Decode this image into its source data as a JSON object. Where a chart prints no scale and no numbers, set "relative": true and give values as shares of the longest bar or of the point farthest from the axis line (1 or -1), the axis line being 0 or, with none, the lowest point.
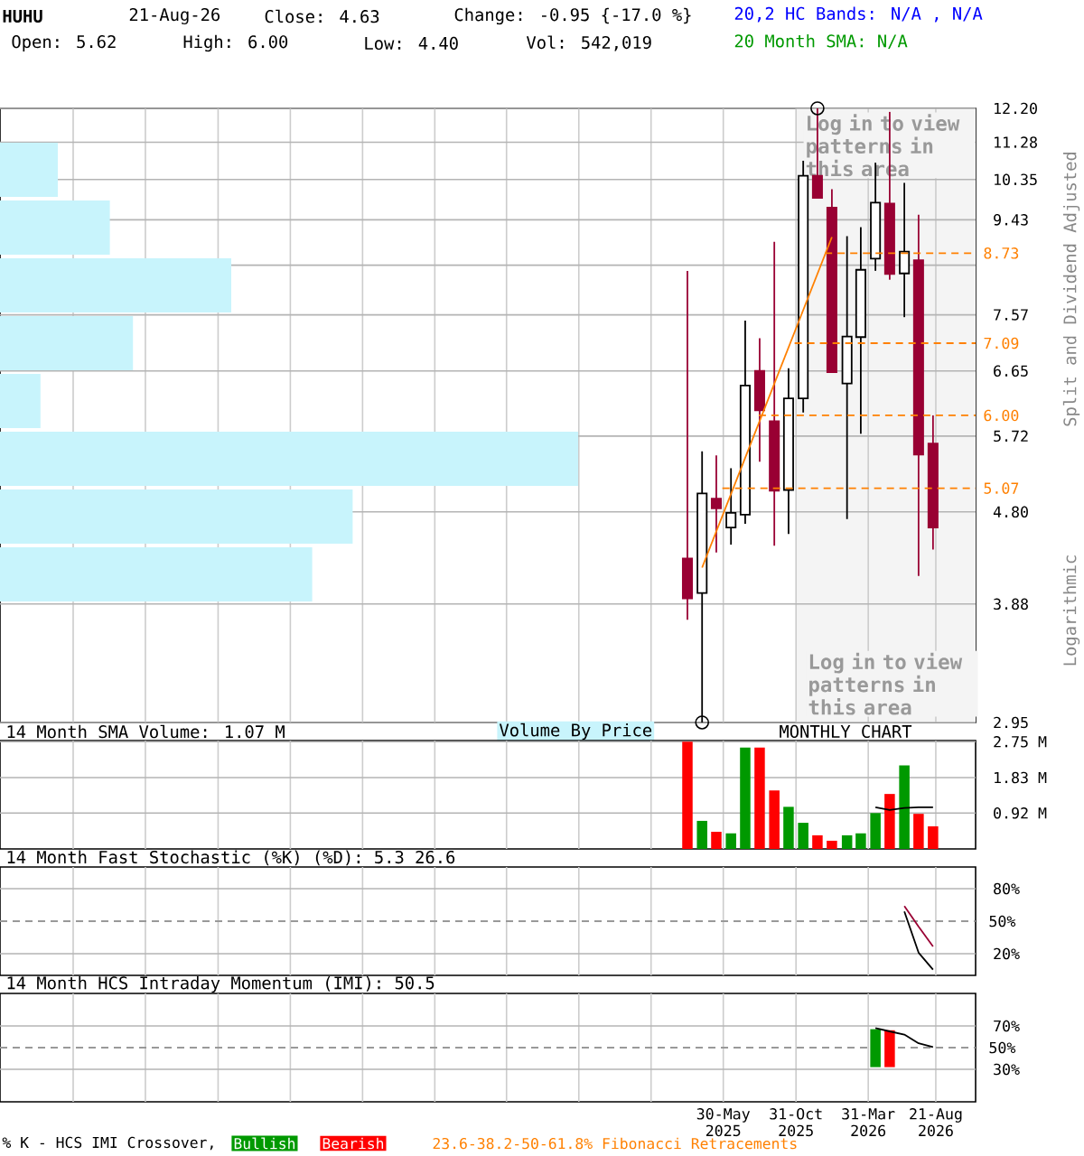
{
  "chart_data": [
    {
      "type": "candlestick",
      "title": "HUHU",
      "x": [
        "2025-03-15",
        "2025-04-15",
        "2025-05-15",
        "2025-06-15",
        "2025-07-15",
        "2025-08-15",
        "2025-09-15",
        "2025-10-15",
        "2025-11-15",
        "2025-12-15",
        "2026-01-15",
        "2026-02-15",
        "2026-03-15",
        "2026-04-15",
        "2026-05-15",
        "2026-06-15",
        "2026-07-15",
        "2026-08-15"
      ],
      "ohlc": [
        [
          4.31,
          8.38,
          3.74,
          3.93
        ],
        [
          3.98,
          5.52,
          2.95,
          5.01
        ],
        [
          4.95,
          5.47,
          4.37,
          4.84
        ],
        [
          4.63,
          5.31,
          4.45,
          4.79
        ],
        [
          4.77,
          7.47,
          4.67,
          6.43
        ],
        [
          6.65,
          7.17,
          5.39,
          6.07
        ],
        [
          5.92,
          8.96,
          4.44,
          5.04
        ],
        [
          5.05,
          6.69,
          4.56,
          6.24
        ],
        [
          6.24,
          10.81,
          6.04,
          10.44
        ],
        [
          10.44,
          12.2,
          9.92,
          9.92
        ],
        [
          9.7,
          10.12,
          6.63,
          6.63
        ],
        [
          6.46,
          9.08,
          4.72,
          7.2
        ],
        [
          7.19,
          9.27,
          5.75,
          8.4
        ],
        [
          8.62,
          10.76,
          8.38,
          9.81
        ],
        [
          9.79,
          12.1,
          8.21,
          8.32
        ],
        [
          8.33,
          10.27,
          7.53,
          8.76
        ],
        [
          8.59,
          9.54,
          4.14,
          5.48
        ],
        [
          5.62,
          6.0,
          4.4,
          4.63
        ]
      ],
      "colors": [
        "#990033",
        "#ffffff",
        "#990033",
        "#ffffff",
        "#ffffff",
        "#990033",
        "#990033",
        "#ffffff",
        "#ffffff",
        "#990033",
        "#990033",
        "#ffffff",
        "#ffffff",
        "#ffffff",
        "#990033",
        "#ffffff",
        "#990033",
        "#990033"
      ],
      "series": [
        {
          "type": "line",
          "x": [
            "2025-04-15",
            "2026-01-15"
          ],
          "values": [
            4.22,
            9.06
          ],
          "color": "#ff8000"
        },
        {
          "type": "line",
          "x": [
            "2025-12-31",
            "2026-11-13"
          ],
          "values": [
            8.73,
            8.73
          ],
          "color": "#ff8000",
          "line_style": "dashed"
        },
        {
          "type": "line",
          "x": [
            "2025-10-28",
            "2026-11-13"
          ],
          "values": [
            7.09,
            7.09
          ],
          "color": "#ff8000",
          "line_style": "dashed"
        },
        {
          "type": "line",
          "x": [
            "2025-08-13",
            "2026-11-13"
          ],
          "values": [
            6.0,
            6.0
          ],
          "color": "#ff8000",
          "line_style": "dashed"
        },
        {
          "type": "line",
          "x": [
            "2025-05-28",
            "2026-11-13"
          ],
          "values": [
            5.07,
            5.07
          ],
          "color": "#ff8000",
          "line_style": "dashed"
        },
        {
          "type": "scatter",
          "x": [
            "2025-12-15",
            "2025-04-15"
          ],
          "values": [
            12.2,
            2.95
          ],
          "color": "#000000",
          "marker": "circle"
        }
      ],
      "xlim": [
        "2021-03-28",
        "2026-11-13"
      ],
      "xticks": [
        {
          "value": "2021-08-30",
          "label": null
        },
        {
          "value": "2022-01-30",
          "label": null
        },
        {
          "value": "2022-06-30",
          "label": null
        },
        {
          "value": "2022-11-30",
          "label": null
        },
        {
          "value": "2023-04-30",
          "label": null
        },
        {
          "value": "2023-09-30",
          "label": null
        },
        {
          "value": "2024-02-28",
          "label": null
        },
        {
          "value": "2024-07-30",
          "label": null
        },
        {
          "value": "2024-12-30",
          "label": null
        },
        {
          "value": "2025-05-30",
          "label": null
        },
        {
          "value": "2025-10-31",
          "label": null
        },
        {
          "value": "2026-03-31",
          "label": null
        },
        {
          "value": "2026-08-21",
          "label": null
        }
      ],
      "ylim": [
        2.95,
        12.2
      ],
      "yticks": [
        2.95,
        3.88,
        {
          "value": 4.8,
          "label": "4.80"
        },
        5.72,
        6.65,
        7.57,
        {
          "value": 8.49,
          "label": null
        },
        9.43,
        10.35,
        11.28,
        {
          "value": 12.2,
          "label": "12.20"
        }
      ],
      "log": "y",
      "grid": true,
      "tick_labels": "y",
      "bands": [
        {
          "axis": "x",
          "from": "2025-10-31",
          "to": "2026-11-13",
          "label": "Log in to view patterns in this area",
          "color": "#f4f4f4"
        }
      ],
      "annotations": [
        "21-Aug-26",
        "Close: 4.63",
        "Change: -0.95 {-17.0 %}",
        "20,2 HC Bands: N/A , N/A",
        "Open: 5.62",
        "High: 6.00",
        "Low: 4.40",
        "Vol: 542,019",
        "20 Month SMA: N/A",
        "Split and Dividend Adjusted",
        "Logarithmic",
        "Log in to view patterns in this area",
        {
          "text": "8.73",
          "x": "2026-11-13",
          "y": 8.73
        },
        {
          "text": "7.09",
          "x": "2026-11-13",
          "y": 7.09
        },
        {
          "text": "6.00",
          "x": "2026-11-13",
          "y": 6.0
        },
        {
          "text": "5.07",
          "x": "2026-11-13",
          "y": 5.07
        }
      ]
    },
    {
      "type": "bar",
      "orientation": "horizontal",
      "relative": true,
      "tick_labels": false,
      "categories": [
        null,
        null,
        null,
        null,
        null,
        null,
        null,
        null
      ],
      "values": [
        0.1,
        0.19,
        0.4,
        0.23,
        0.07,
        1,
        0.61,
        0.54
      ],
      "color": "#c8f4fc",
      "annotations": [
        "Volume By Price"
      ]
    },
    {
      "type": "bar",
      "title": "14 Month SMA Volume: 1.07 M",
      "x": [
        "2025-03-15",
        "2025-04-15",
        "2025-05-15",
        "2025-06-15",
        "2025-07-15",
        "2025-08-15",
        "2025-09-15",
        "2025-10-15",
        "2025-11-15",
        "2025-12-15",
        "2026-01-15",
        "2026-02-15",
        "2026-03-15",
        "2026-04-15",
        "2026-05-15",
        "2026-06-15",
        "2026-07-15",
        "2026-08-15"
      ],
      "values": [
        2.75,
        0.72,
        0.44,
        0.4,
        2.6,
        2.6,
        1.5,
        1.08,
        0.67,
        0.35,
        0.21,
        0.35,
        0.4,
        0.92,
        1.41,
        2.14,
        0.9,
        0.58
      ],
      "colors": [
        "#ff0000",
        "#009900",
        "#ff0000",
        "#009900",
        "#009900",
        "#ff0000",
        "#ff0000",
        "#009900",
        "#009900",
        "#ff0000",
        "#ff0000",
        "#009900",
        "#009900",
        "#009900",
        "#ff0000",
        "#009900",
        "#ff0000",
        "#ff0000"
      ],
      "series": [
        {
          "type": "line",
          "x": [
            "2026-04-15",
            "2026-05-15",
            "2026-06-15",
            "2026-07-15",
            "2026-08-15"
          ],
          "values": [
            1.07,
            1.0,
            1.05,
            1.07,
            1.07
          ],
          "color": "#000000"
        }
      ],
      "xlim": [
        "2021-03-28",
        "2026-11-13"
      ],
      "xticks": [
        {
          "value": "2021-08-30",
          "label": null
        },
        {
          "value": "2022-01-30",
          "label": null
        },
        {
          "value": "2022-06-30",
          "label": null
        },
        {
          "value": "2022-11-30",
          "label": null
        },
        {
          "value": "2023-04-30",
          "label": null
        },
        {
          "value": "2023-09-30",
          "label": null
        },
        {
          "value": "2024-02-28",
          "label": null
        },
        {
          "value": "2024-07-30",
          "label": null
        },
        {
          "value": "2024-12-30",
          "label": null
        },
        {
          "value": "2025-05-30",
          "label": null
        },
        {
          "value": "2025-10-31",
          "label": null
        },
        {
          "value": "2026-03-31",
          "label": null
        },
        {
          "value": "2026-08-21",
          "label": null
        }
      ],
      "ylim": [
        0,
        2.78
      ],
      "yticks": [
        {
          "value": 0.92,
          "label": "0.92 M"
        },
        {
          "value": 1.83,
          "label": "1.83 M"
        },
        {
          "value": 2.75,
          "label": "2.75 M"
        }
      ],
      "grid": true,
      "tick_labels": "y",
      "annotations": [
        "MONTHLY CHART"
      ]
    },
    {
      "type": "line",
      "title": "14 Month Fast Stochastic (%K) (%D): 5.3   26.6",
      "series": [
        {
          "type": "line",
          "x": [
            "2026-06-15",
            "2026-07-15",
            "2026-08-15"
          ],
          "values": [
            59,
            21,
            5.3
          ],
          "color": "#000000"
        },
        {
          "type": "line",
          "x": [
            "2026-06-15",
            "2026-07-15",
            "2026-08-15"
          ],
          "values": [
            64,
            45,
            26.6
          ],
          "color": "#990033"
        }
      ],
      "xlim": [
        "2021-03-28",
        "2026-11-13"
      ],
      "xticks": [
        {
          "value": "2021-08-30",
          "label": null
        },
        {
          "value": "2022-01-30",
          "label": null
        },
        {
          "value": "2022-06-30",
          "label": null
        },
        {
          "value": "2022-11-30",
          "label": null
        },
        {
          "value": "2023-04-30",
          "label": null
        },
        {
          "value": "2023-09-30",
          "label": null
        },
        {
          "value": "2024-02-28",
          "label": null
        },
        {
          "value": "2024-07-30",
          "label": null
        },
        {
          "value": "2024-12-30",
          "label": null
        },
        {
          "value": "2025-05-30",
          "label": null
        },
        {
          "value": "2025-10-31",
          "label": null
        },
        {
          "value": "2026-03-31",
          "label": null
        },
        {
          "value": "2026-08-21",
          "label": null
        }
      ],
      "ylim": [
        0,
        100
      ],
      "yticks": [
        {
          "value": 20,
          "label": "20%"
        },
        {
          "value": 80,
          "label": "80%"
        }
      ],
      "ref_lines": [
        {
          "axis": "y",
          "value": 50,
          "label": "50%",
          "color": "#999999",
          "line_style": "dashed"
        }
      ],
      "grid": true,
      "tick_labels": "y"
    },
    {
      "type": "bar",
      "title": "14 Month HCS Intraday Momentum (IMI): 50.5",
      "x": [
        "2026-04-15",
        "2026-05-15"
      ],
      "base": [
        32,
        32
      ],
      "values": [
        35,
        34
      ],
      "colors": [
        "#009900",
        "#ff0000"
      ],
      "series": [
        {
          "type": "line",
          "x": [
            "2026-04-15",
            "2026-05-15",
            "2026-06-15",
            "2026-07-15",
            "2026-08-15"
          ],
          "values": [
            68,
            65,
            62,
            54,
            50.5
          ],
          "color": "#000000"
        }
      ],
      "xlim": [
        "2021-03-28",
        "2026-11-13"
      ],
      "xticks": [
        {
          "value": "2021-08-30",
          "label": null
        },
        {
          "value": "2022-01-30",
          "label": null
        },
        {
          "value": "2022-06-30",
          "label": null
        },
        {
          "value": "2022-11-30",
          "label": null
        },
        {
          "value": "2023-04-30",
          "label": null
        },
        {
          "value": "2023-09-30",
          "label": null
        },
        {
          "value": "2024-02-28",
          "label": null
        },
        {
          "value": "2024-07-30",
          "label": null
        },
        {
          "value": "2024-12-30",
          "label": null
        },
        {
          "value": "2025-05-30",
          "label": "30-May 2025"
        },
        {
          "value": "2025-10-31",
          "label": "31-Oct 2025"
        },
        {
          "value": "2026-03-31",
          "label": "31-Mar 2026"
        },
        {
          "value": "2026-08-21",
          "label": "21-Aug 2026"
        }
      ],
      "ylim": [
        0,
        100
      ],
      "yticks": [
        {
          "value": 30,
          "label": "30%"
        },
        {
          "value": 70,
          "label": "70%"
        }
      ],
      "ref_lines": [
        {
          "axis": "y",
          "value": 50,
          "label": "50%",
          "color": "#999999",
          "line_style": "dashed"
        }
      ],
      "grid": true,
      "annotations": [
        "% K - HCS IMI Crossover,",
        "Bullish",
        "Bearish",
        "23.6-38.2-50-61.8% Fibonacci Retracements"
      ]
    }
  ]
}
